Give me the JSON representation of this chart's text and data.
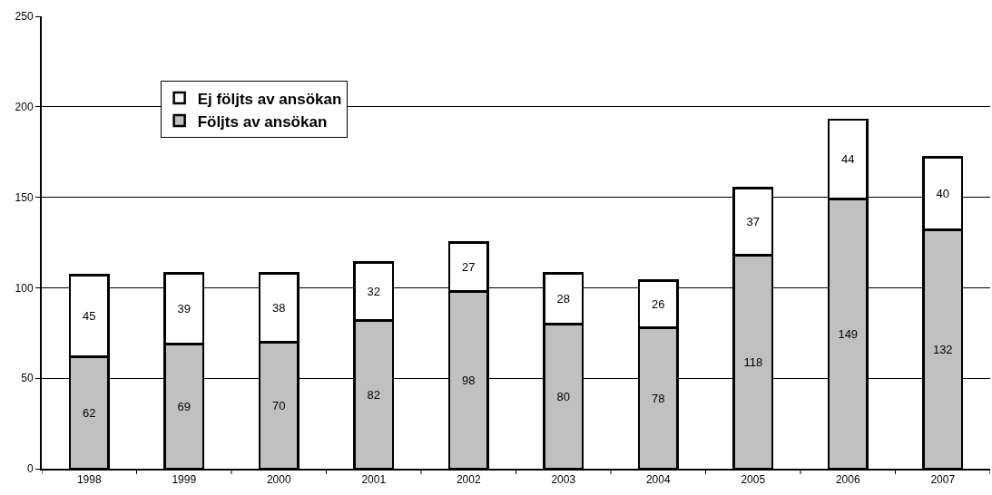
{
  "chart_data": {
    "type": "bar",
    "stacked": true,
    "categories": [
      "1998",
      "1999",
      "2000",
      "2001",
      "2002",
      "2003",
      "2004",
      "2005",
      "2006",
      "2007"
    ],
    "series": [
      {
        "name": "Följts av ansökan",
        "color": "#c0c0c0",
        "values": [
          62,
          69,
          70,
          82,
          98,
          80,
          78,
          118,
          149,
          132
        ]
      },
      {
        "name": "Ej följts av ansökan",
        "color": "#ffffff",
        "values": [
          45,
          39,
          38,
          32,
          27,
          28,
          26,
          37,
          44,
          40
        ]
      }
    ],
    "ylim": [
      0,
      250
    ],
    "yticks": [
      0,
      50,
      100,
      150,
      200,
      250
    ],
    "grid": "y",
    "legend": "top left",
    "data_labels": true
  }
}
